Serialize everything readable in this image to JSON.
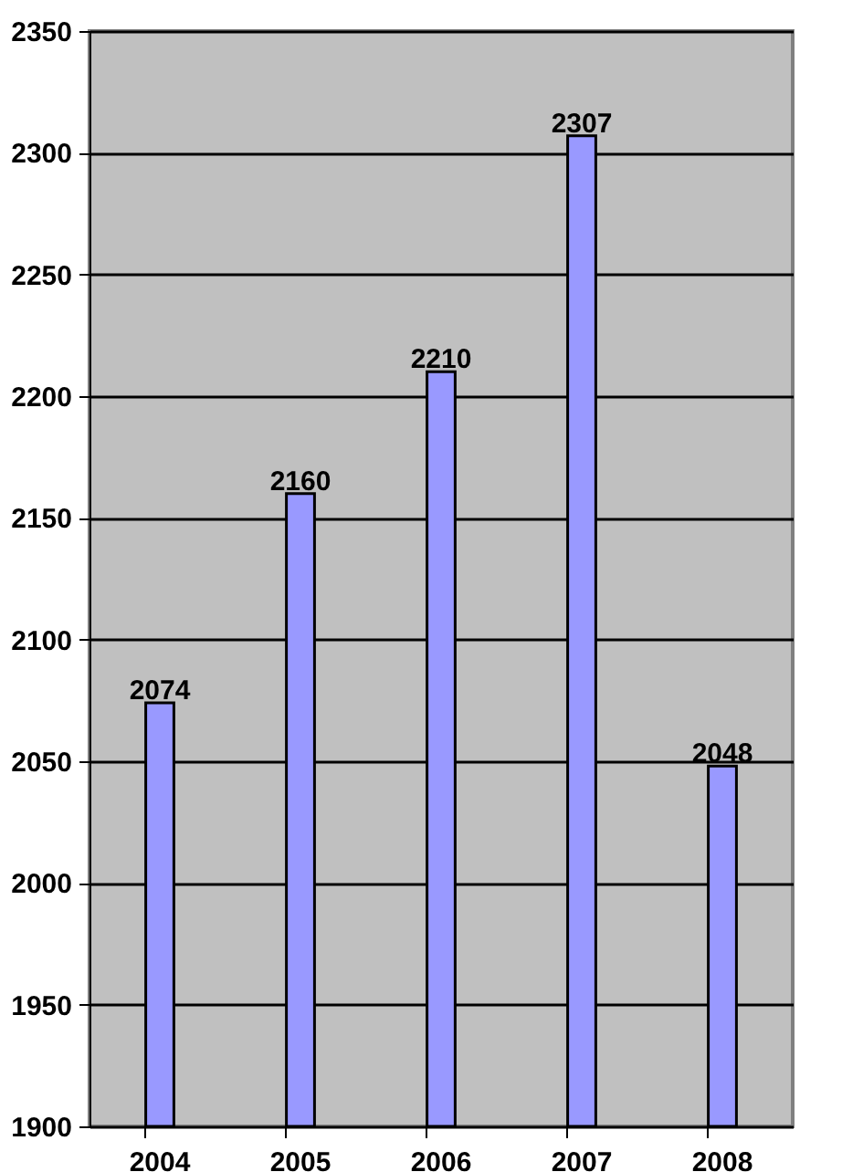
{
  "chart_data": {
    "type": "bar",
    "categories": [
      "2004",
      "2005",
      "2006",
      "2007",
      "2008"
    ],
    "values": [
      2074,
      2160,
      2210,
      2307,
      2048
    ],
    "color": "#9999ff",
    "ylim": [
      1900,
      2350
    ],
    "yticks": [
      1900,
      1950,
      2000,
      2050,
      2100,
      2150,
      2200,
      2250,
      2300,
      2350
    ],
    "grid": "y",
    "data_labels": true
  }
}
